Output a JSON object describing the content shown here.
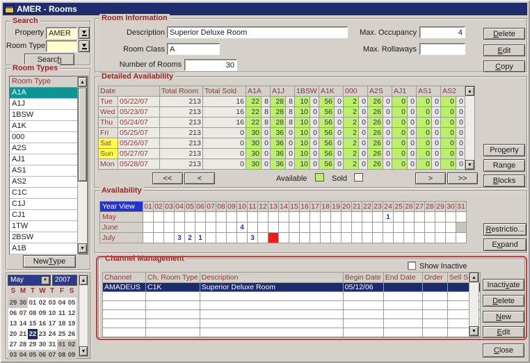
{
  "window": {
    "title": "AMER - Rooms"
  },
  "colors": {
    "available_green": "#bdf06a",
    "sold_gray": "#e8e6e8",
    "weekend_yellow": "#ffff4d",
    "alert_red": "#ed1c1c",
    "annotation_red": "#c43c3c",
    "selection_teal": "#0e9494",
    "selection_navy": "#1c2a6e",
    "year_view_blue": "#2633c8",
    "input_yellow": "#ffffcc",
    "title_maroon": "#9c2626"
  },
  "search": {
    "title": "Search",
    "property_label": "Property",
    "property_value": "AMER",
    "room_type_label": "Room Type",
    "room_type_value": "",
    "search_button": "Search"
  },
  "room_types": {
    "title": "Room Types",
    "header": "Room Type",
    "selected": "A1A",
    "items": [
      "A1A",
      "A1J",
      "1BSW",
      "A1K",
      "000",
      "A2S",
      "AJ1",
      "AS1",
      "AS2",
      "C1C",
      "C1J",
      "CJ1",
      "1TW",
      "2BSW",
      "A1B"
    ],
    "new_type_button": "New Type"
  },
  "calendar": {
    "month": "May",
    "year": "2007",
    "day_headers": [
      "S",
      "M",
      "T",
      "W",
      "T",
      "F",
      "S"
    ],
    "selected_day": "22",
    "weeks": [
      [
        {
          "d": "29",
          "o": true
        },
        {
          "d": "30",
          "o": true
        },
        {
          "d": "01"
        },
        {
          "d": "02"
        },
        {
          "d": "03"
        },
        {
          "d": "04"
        },
        {
          "d": "05"
        }
      ],
      [
        {
          "d": "06"
        },
        {
          "d": "07"
        },
        {
          "d": "08"
        },
        {
          "d": "09"
        },
        {
          "d": "10"
        },
        {
          "d": "11"
        },
        {
          "d": "12"
        }
      ],
      [
        {
          "d": "13"
        },
        {
          "d": "14"
        },
        {
          "d": "15"
        },
        {
          "d": "16"
        },
        {
          "d": "17"
        },
        {
          "d": "18"
        },
        {
          "d": "19"
        }
      ],
      [
        {
          "d": "20"
        },
        {
          "d": "21"
        },
        {
          "d": "22",
          "s": true
        },
        {
          "d": "23"
        },
        {
          "d": "24"
        },
        {
          "d": "25"
        },
        {
          "d": "26"
        }
      ],
      [
        {
          "d": "27"
        },
        {
          "d": "28"
        },
        {
          "d": "29"
        },
        {
          "d": "30"
        },
        {
          "d": "31"
        },
        {
          "d": "01",
          "o": true
        },
        {
          "d": "02",
          "o": true
        }
      ],
      [
        {
          "d": "03",
          "o": true
        },
        {
          "d": "04",
          "o": true
        },
        {
          "d": "05",
          "o": true
        },
        {
          "d": "06",
          "o": true
        },
        {
          "d": "07",
          "o": true
        },
        {
          "d": "08",
          "o": true
        },
        {
          "d": "09",
          "o": true
        }
      ]
    ]
  },
  "room_info": {
    "title": "Room Information",
    "description_label": "Description",
    "description_value": "Superior Deluxe Room",
    "room_class_label": "Room Class",
    "room_class_value": "A",
    "number_of_rooms_label": "Number of Rooms",
    "number_of_rooms_value": "30",
    "max_occupancy_label": "Max. Occupancy",
    "max_occupancy_value": "4",
    "max_rollaways_label": "Max. Rollaways",
    "max_rollaways_value": "",
    "buttons": [
      "Delete",
      "Edit",
      "Copy"
    ]
  },
  "detailed_availability": {
    "title": "Detailed Availability",
    "columns": [
      "Date",
      "Total Room",
      "Total Sold",
      "A1A",
      "A1J",
      "1BSW",
      "A1K",
      "000",
      "A2S",
      "AJ1",
      "AS1",
      "AS2"
    ],
    "rows": [
      {
        "day": "Tue",
        "date": "05/22/07",
        "total_room": "213",
        "total_sold": "16",
        "weekend": false,
        "pairs": [
          [
            "22",
            "8"
          ],
          [
            "28",
            "8"
          ],
          [
            "10",
            "0"
          ],
          [
            "56",
            "0"
          ],
          [
            "2",
            "0"
          ],
          [
            "26",
            "0"
          ],
          [
            "0",
            "0"
          ],
          [
            "0",
            "0"
          ],
          [
            "0",
            "0"
          ]
        ]
      },
      {
        "day": "Wed",
        "date": "05/23/07",
        "total_room": "213",
        "total_sold": "16",
        "weekend": false,
        "pairs": [
          [
            "22",
            "8"
          ],
          [
            "28",
            "8"
          ],
          [
            "10",
            "0"
          ],
          [
            "56",
            "0"
          ],
          [
            "2",
            "0"
          ],
          [
            "26",
            "0"
          ],
          [
            "0",
            "0"
          ],
          [
            "0",
            "0"
          ],
          [
            "0",
            "0"
          ]
        ]
      },
      {
        "day": "Thu",
        "date": "05/24/07",
        "total_room": "213",
        "total_sold": "16",
        "weekend": false,
        "pairs": [
          [
            "22",
            "8"
          ],
          [
            "28",
            "8"
          ],
          [
            "10",
            "0"
          ],
          [
            "56",
            "0"
          ],
          [
            "2",
            "0"
          ],
          [
            "26",
            "0"
          ],
          [
            "0",
            "0"
          ],
          [
            "0",
            "0"
          ],
          [
            "0",
            "0"
          ]
        ]
      },
      {
        "day": "Fri",
        "date": "05/25/07",
        "total_room": "213",
        "total_sold": "0",
        "weekend": false,
        "pairs": [
          [
            "30",
            "0"
          ],
          [
            "36",
            "0"
          ],
          [
            "10",
            "0"
          ],
          [
            "56",
            "0"
          ],
          [
            "2",
            "0"
          ],
          [
            "26",
            "0"
          ],
          [
            "0",
            "0"
          ],
          [
            "0",
            "0"
          ],
          [
            "0",
            "0"
          ]
        ]
      },
      {
        "day": "Sat",
        "date": "05/26/07",
        "total_room": "213",
        "total_sold": "0",
        "weekend": true,
        "pairs": [
          [
            "30",
            "0"
          ],
          [
            "36",
            "0"
          ],
          [
            "10",
            "0"
          ],
          [
            "56",
            "0"
          ],
          [
            "2",
            "0"
          ],
          [
            "26",
            "0"
          ],
          [
            "0",
            "0"
          ],
          [
            "0",
            "0"
          ],
          [
            "0",
            "0"
          ]
        ]
      },
      {
        "day": "Sun",
        "date": "05/27/07",
        "total_room": "213",
        "total_sold": "0",
        "weekend": true,
        "pairs": [
          [
            "30",
            "0"
          ],
          [
            "36",
            "0"
          ],
          [
            "10",
            "0"
          ],
          [
            "56",
            "0"
          ],
          [
            "2",
            "0"
          ],
          [
            "26",
            "0"
          ],
          [
            "0",
            "0"
          ],
          [
            "0",
            "0"
          ],
          [
            "0",
            "0"
          ]
        ]
      },
      {
        "day": "Mon",
        "date": "05/28/07",
        "total_room": "213",
        "total_sold": "0",
        "weekend": false,
        "pairs": [
          [
            "30",
            "0"
          ],
          [
            "36",
            "0"
          ],
          [
            "10",
            "0"
          ],
          [
            "56",
            "0"
          ],
          [
            "2",
            "0"
          ],
          [
            "26",
            "0"
          ],
          [
            "0",
            "0"
          ],
          [
            "0",
            "0"
          ],
          [
            "0",
            "0"
          ]
        ]
      }
    ],
    "nav": [
      "<<",
      "<",
      ">",
      ">>"
    ],
    "legend": {
      "available": "Available",
      "sold": "Sold"
    },
    "side_buttons": [
      "Property",
      "Range",
      "Blocks"
    ]
  },
  "availability": {
    "title": "Availability",
    "corner": "Year View",
    "day_columns": [
      "01",
      "02",
      "03",
      "04",
      "05",
      "06",
      "07",
      "08",
      "09",
      "10",
      "11",
      "12",
      "13",
      "14",
      "15",
      "16",
      "17",
      "18",
      "19",
      "20",
      "21",
      "22",
      "23",
      "24",
      "25",
      "26",
      "27",
      "28",
      "29",
      "30",
      "31"
    ],
    "rows": [
      {
        "label": "May",
        "cells": {
          "24": "1"
        },
        "red": [],
        "disabled": []
      },
      {
        "label": "June",
        "cells": {
          "10": "4"
        },
        "red": [],
        "disabled": [
          "31"
        ]
      },
      {
        "label": "July",
        "cells": {
          "04": "3",
          "05": "2",
          "06": "1",
          "11": "3"
        },
        "red": [
          "13"
        ],
        "disabled": []
      }
    ],
    "buttons": [
      "Restrictio...",
      "Expand"
    ]
  },
  "channel_management": {
    "title": "Channel Management",
    "show_inactive_label": "Show Inactive",
    "show_inactive_checked": false,
    "columns": [
      "Channel",
      "Ch. Room Type",
      "Description",
      "Begin Date",
      "End Date",
      "Order",
      "Sell Seq."
    ],
    "rows": [
      [
        "AMADEUS",
        "C1K",
        "Superior Deluxe Room",
        "05/12/06",
        "",
        "",
        ""
      ]
    ],
    "empty_rows": 5,
    "buttons": [
      "Inactivate",
      "Delete",
      "New",
      "Edit"
    ]
  },
  "close_button": "Close"
}
